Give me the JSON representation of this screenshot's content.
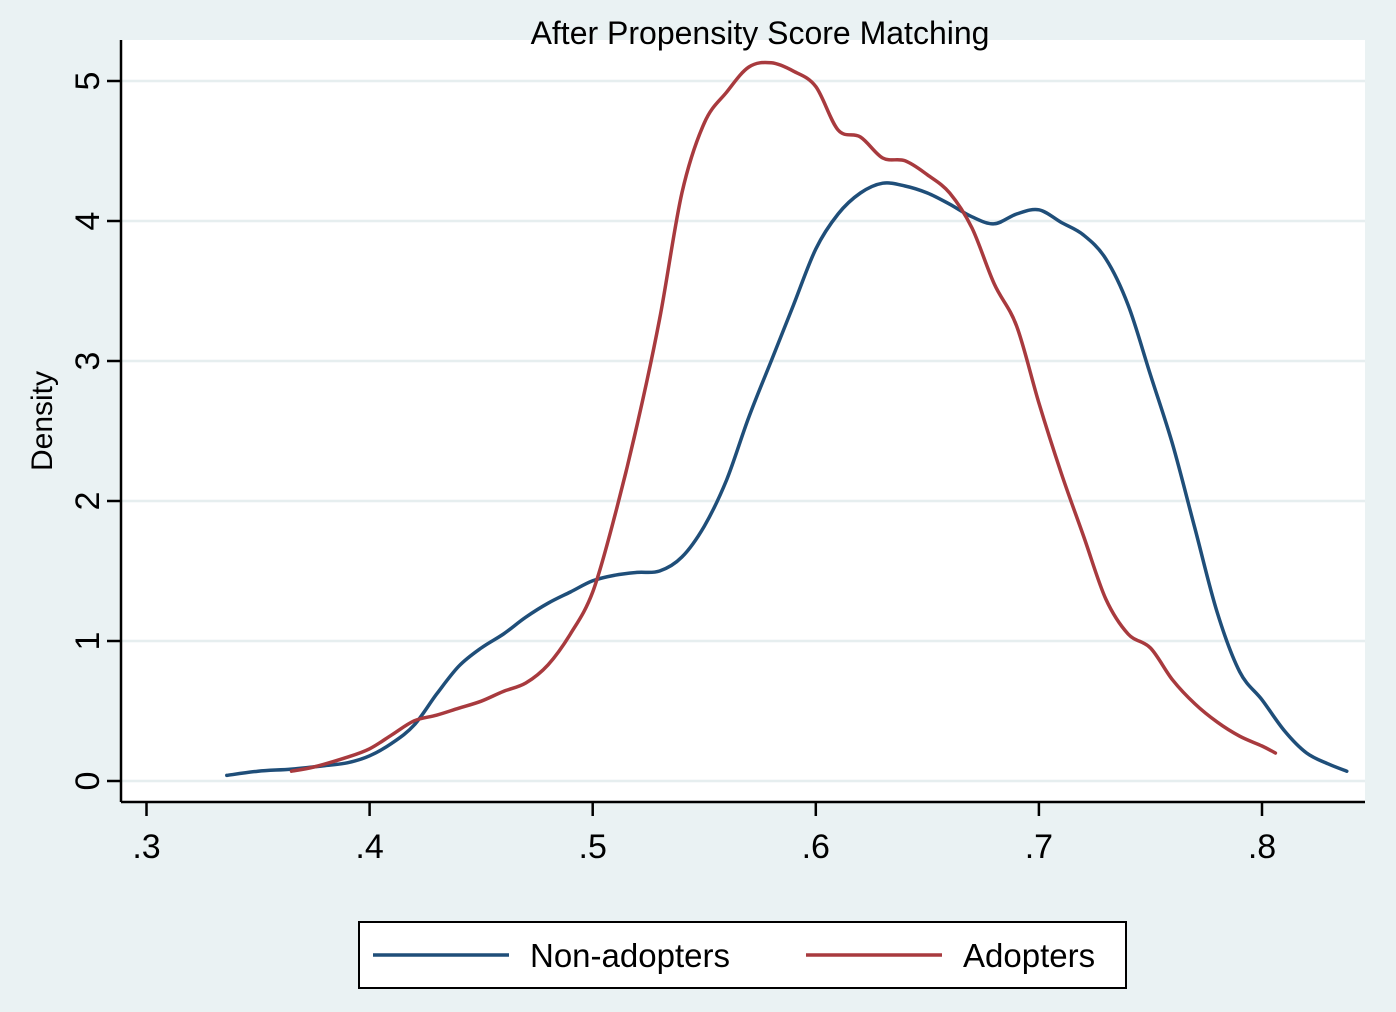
{
  "chart_data": {
    "type": "line",
    "title": "After Propensity Score Matching",
    "xlabel": "",
    "ylabel": "Density",
    "xlim": [
      0.3,
      0.84
    ],
    "ylim": [
      0,
      5.2
    ],
    "x_ticks": [
      0.3,
      0.4,
      0.5,
      0.6,
      0.7,
      0.8
    ],
    "x_tick_labels": [
      ".3",
      ".4",
      ".5",
      ".6",
      ".7",
      ".8"
    ],
    "y_ticks": [
      0,
      1,
      2,
      3,
      4,
      5
    ],
    "y_tick_labels": [
      "0",
      "1",
      "2",
      "3",
      "4",
      "5"
    ],
    "grid": true,
    "legend_position": "bottom",
    "series": [
      {
        "name": "Non-adopters",
        "color": "#1f4e79",
        "points": [
          [
            0.336,
            0.04
          ],
          [
            0.35,
            0.07
          ],
          [
            0.365,
            0.085
          ],
          [
            0.38,
            0.11
          ],
          [
            0.39,
            0.13
          ],
          [
            0.4,
            0.18
          ],
          [
            0.41,
            0.27
          ],
          [
            0.42,
            0.4
          ],
          [
            0.43,
            0.62
          ],
          [
            0.44,
            0.82
          ],
          [
            0.45,
            0.95
          ],
          [
            0.46,
            1.05
          ],
          [
            0.47,
            1.17
          ],
          [
            0.48,
            1.27
          ],
          [
            0.49,
            1.35
          ],
          [
            0.5,
            1.43
          ],
          [
            0.51,
            1.47
          ],
          [
            0.52,
            1.49
          ],
          [
            0.53,
            1.5
          ],
          [
            0.54,
            1.6
          ],
          [
            0.55,
            1.82
          ],
          [
            0.56,
            2.15
          ],
          [
            0.57,
            2.6
          ],
          [
            0.58,
            3.0
          ],
          [
            0.59,
            3.4
          ],
          [
            0.6,
            3.8
          ],
          [
            0.61,
            4.05
          ],
          [
            0.62,
            4.2
          ],
          [
            0.63,
            4.27
          ],
          [
            0.64,
            4.25
          ],
          [
            0.65,
            4.2
          ],
          [
            0.66,
            4.12
          ],
          [
            0.67,
            4.03
          ],
          [
            0.68,
            3.98
          ],
          [
            0.69,
            4.05
          ],
          [
            0.7,
            4.08
          ],
          [
            0.71,
            3.99
          ],
          [
            0.72,
            3.9
          ],
          [
            0.73,
            3.73
          ],
          [
            0.74,
            3.4
          ],
          [
            0.75,
            2.9
          ],
          [
            0.76,
            2.4
          ],
          [
            0.77,
            1.8
          ],
          [
            0.78,
            1.2
          ],
          [
            0.79,
            0.78
          ],
          [
            0.8,
            0.58
          ],
          [
            0.81,
            0.36
          ],
          [
            0.82,
            0.2
          ],
          [
            0.83,
            0.12
          ],
          [
            0.838,
            0.07
          ]
        ]
      },
      {
        "name": "Adopters",
        "color": "#a83a3e",
        "points": [
          [
            0.365,
            0.07
          ],
          [
            0.375,
            0.1
          ],
          [
            0.39,
            0.17
          ],
          [
            0.4,
            0.23
          ],
          [
            0.41,
            0.33
          ],
          [
            0.42,
            0.43
          ],
          [
            0.43,
            0.47
          ],
          [
            0.44,
            0.52
          ],
          [
            0.45,
            0.57
          ],
          [
            0.46,
            0.64
          ],
          [
            0.47,
            0.7
          ],
          [
            0.48,
            0.83
          ],
          [
            0.49,
            1.05
          ],
          [
            0.5,
            1.35
          ],
          [
            0.51,
            1.9
          ],
          [
            0.52,
            2.55
          ],
          [
            0.53,
            3.3
          ],
          [
            0.54,
            4.2
          ],
          [
            0.55,
            4.7
          ],
          [
            0.56,
            4.92
          ],
          [
            0.57,
            5.1
          ],
          [
            0.58,
            5.13
          ],
          [
            0.59,
            5.07
          ],
          [
            0.6,
            4.96
          ],
          [
            0.61,
            4.65
          ],
          [
            0.62,
            4.6
          ],
          [
            0.63,
            4.45
          ],
          [
            0.64,
            4.43
          ],
          [
            0.65,
            4.33
          ],
          [
            0.66,
            4.2
          ],
          [
            0.67,
            3.95
          ],
          [
            0.68,
            3.55
          ],
          [
            0.69,
            3.25
          ],
          [
            0.7,
            2.7
          ],
          [
            0.71,
            2.2
          ],
          [
            0.72,
            1.75
          ],
          [
            0.73,
            1.3
          ],
          [
            0.74,
            1.05
          ],
          [
            0.75,
            0.95
          ],
          [
            0.76,
            0.72
          ],
          [
            0.77,
            0.55
          ],
          [
            0.78,
            0.42
          ],
          [
            0.79,
            0.32
          ],
          [
            0.8,
            0.25
          ],
          [
            0.806,
            0.2
          ]
        ]
      }
    ]
  }
}
